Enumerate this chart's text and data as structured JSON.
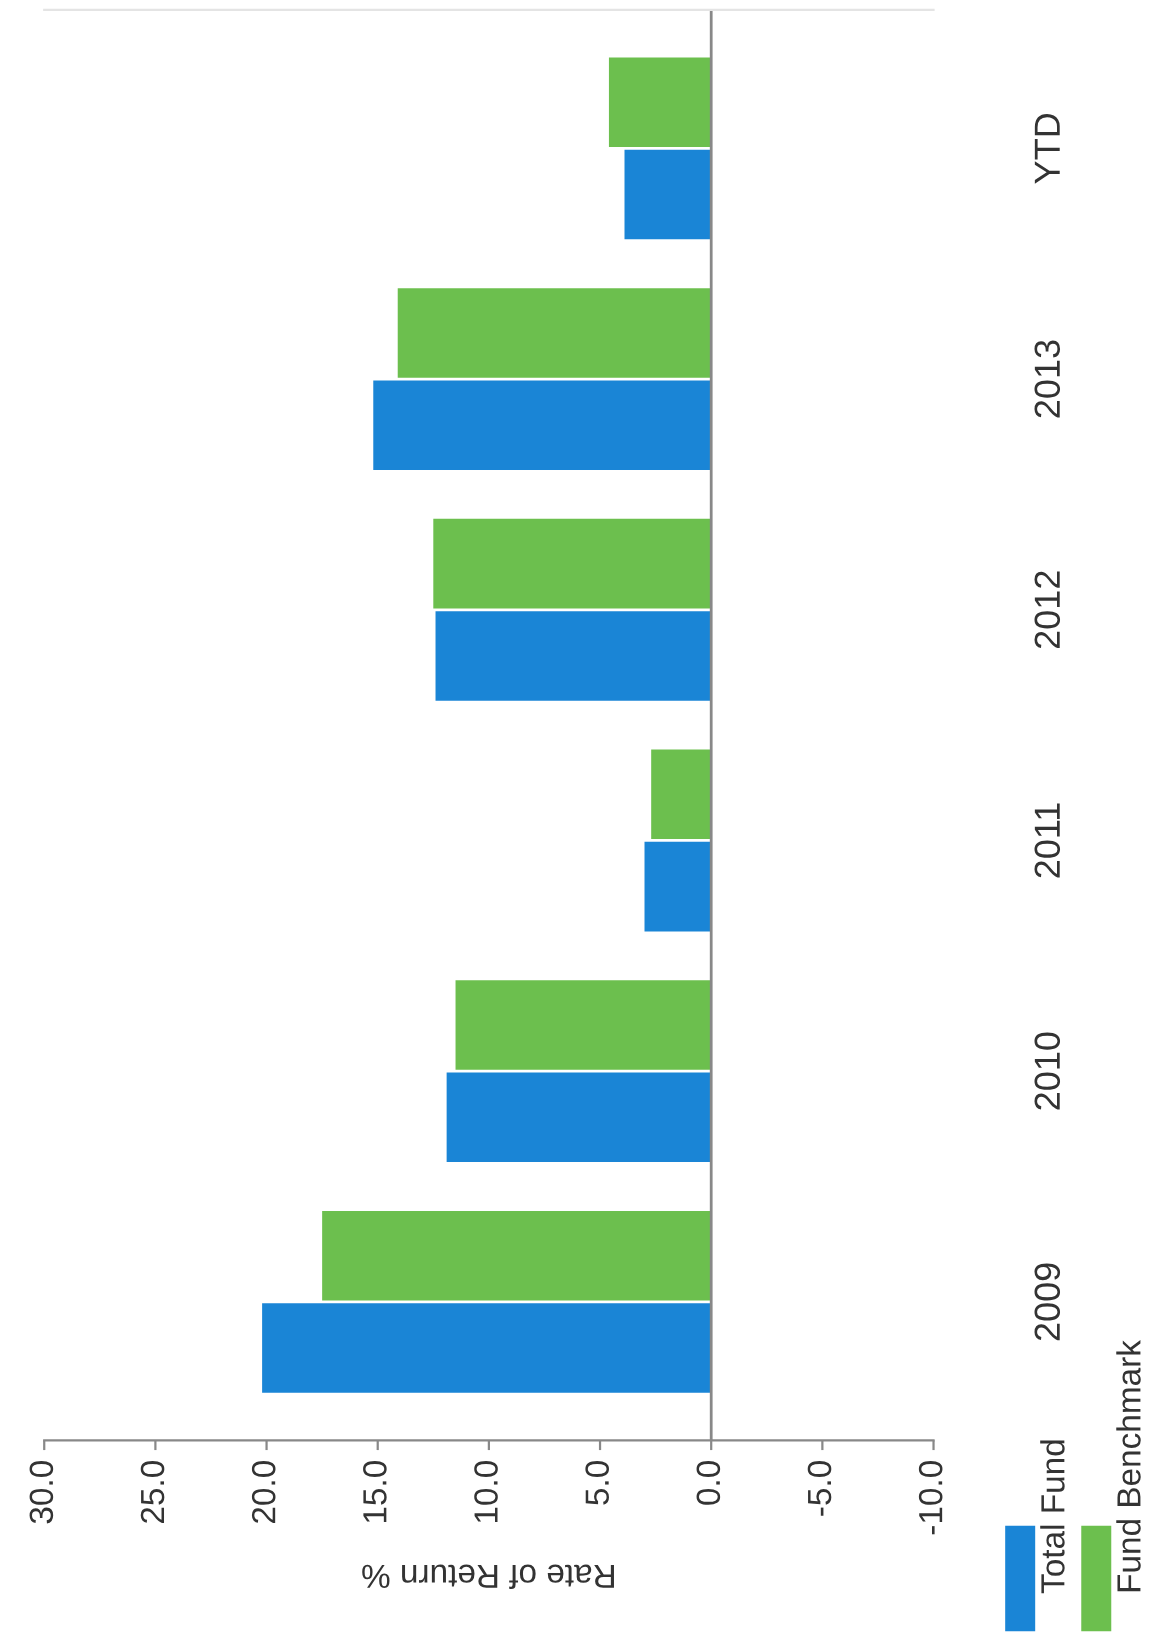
{
  "chart_data": {
    "type": "bar",
    "orientation": "horizontal",
    "xlabel": "Rate of Return %",
    "categories": [
      "YTD",
      "2013",
      "2012",
      "2011",
      "2010",
      "2009"
    ],
    "series": [
      {
        "name": "Total Fund",
        "color": "#1a85d6",
        "values": [
          3.9,
          15.2,
          12.4,
          3.0,
          11.9,
          20.2
        ]
      },
      {
        "name": "Fund Benchmark",
        "color": "#6cbf4e",
        "values": [
          4.6,
          14.1,
          12.5,
          2.7,
          11.5,
          17.5
        ]
      }
    ],
    "xlim": [
      30,
      -10
    ],
    "xticks": [
      {
        "value": 30,
        "label": "30.0"
      },
      {
        "value": 25,
        "label": "25.0"
      },
      {
        "value": 20,
        "label": "20.0"
      },
      {
        "value": 15,
        "label": "15.0"
      },
      {
        "value": 10,
        "label": "10.0"
      },
      {
        "value": 5,
        "label": "5.0"
      },
      {
        "value": 0,
        "label": "0.0"
      },
      {
        "value": -5,
        "label": "-5.0"
      },
      {
        "value": -10,
        "label": "-10.0"
      }
    ],
    "ref_lines": [
      {
        "axis": "x",
        "value": 0,
        "color": "#888888"
      }
    ],
    "grid": false,
    "legend": "bottom right"
  }
}
